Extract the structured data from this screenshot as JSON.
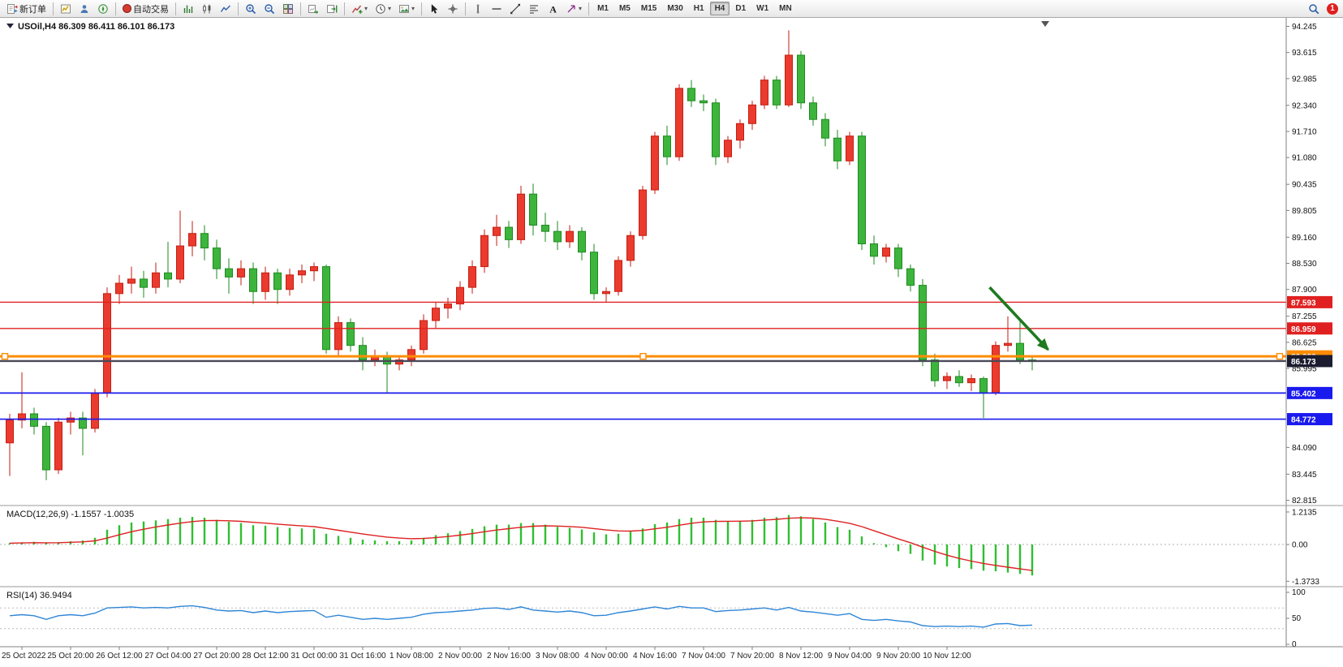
{
  "toolbar": {
    "groups": [
      {
        "items": [
          {
            "name": "new-order-button",
            "icon": "new-order",
            "label": "新订单"
          }
        ]
      },
      {
        "items": [
          {
            "name": "market-watch-button",
            "icon": "market-watch"
          },
          {
            "name": "data-window-button",
            "icon": "data-window"
          },
          {
            "name": "navigator-button",
            "icon": "navigator"
          }
        ]
      },
      {
        "items": [
          {
            "name": "autotrade-button",
            "icon": "autotrade-dot",
            "label": "自动交易"
          }
        ]
      },
      {
        "items": [
          {
            "name": "bar-chart-button",
            "icon": "bar-chart"
          },
          {
            "name": "candlestick-chart-button",
            "icon": "candlestick"
          },
          {
            "name": "line-chart-button",
            "icon": "line-chart"
          }
        ]
      },
      {
        "items": [
          {
            "name": "zoom-in-button",
            "icon": "zoom-in"
          },
          {
            "name": "zoom-out-button",
            "icon": "zoom-out"
          },
          {
            "name": "tile-windows-button",
            "icon": "tile-windows"
          }
        ]
      },
      {
        "items": [
          {
            "name": "auto-scroll-button",
            "icon": "auto-scroll"
          },
          {
            "name": "chart-shift-button",
            "icon": "chart-shift"
          }
        ]
      },
      {
        "items": [
          {
            "name": "indicators-dropdown",
            "icon": "indicators-add",
            "dropdown": true
          },
          {
            "name": "periods-dropdown",
            "icon": "clock",
            "dropdown": true
          },
          {
            "name": "templates-dropdown",
            "icon": "template",
            "dropdown": true
          }
        ]
      },
      {
        "items": [
          {
            "name": "cursor-button",
            "icon": "cursor"
          },
          {
            "name": "crosshair-button",
            "icon": "crosshair"
          }
        ]
      },
      {
        "items": [
          {
            "name": "vertical-line-button",
            "icon": "vline"
          },
          {
            "name": "horizontal-line-button",
            "icon": "hline"
          },
          {
            "name": "trendline-button",
            "icon": "trendline"
          },
          {
            "name": "fibonacci-button",
            "icon": "fibonacci"
          },
          {
            "name": "text-button",
            "icon": "text"
          },
          {
            "name": "arrows-dropdown",
            "icon": "arrows",
            "dropdown": true
          }
        ]
      }
    ],
    "timeframes": [
      "M1",
      "M5",
      "M15",
      "M30",
      "H1",
      "H4",
      "D1",
      "W1",
      "MN"
    ],
    "active_timeframe": "H4",
    "right": {
      "badge": "1"
    }
  },
  "chart": {
    "symbol_line": "USOil,H4 86.309 86.411 86.101 86.173"
  },
  "indicators": {
    "macd_label": "MACD(12,26,9) -1.1557 -1.0035",
    "rsi_label": "RSI(14) 36.9494"
  },
  "chart_data": {
    "type": "candlestick",
    "symbol": "USOil",
    "period": "H4",
    "ohlc_readout": {
      "open": 86.309,
      "high": 86.411,
      "low": 86.101,
      "close": 86.173
    },
    "up_color_convention": "red-up-green-down",
    "price_axis": {
      "ticks": [
        94.245,
        93.615,
        92.985,
        92.34,
        91.71,
        91.08,
        90.435,
        89.805,
        89.16,
        88.53,
        87.9,
        87.255,
        86.625,
        85.995,
        84.09,
        83.445,
        82.815
      ]
    },
    "time_labels": [
      "25 Oct 2022",
      "25 Oct 20:00",
      "26 Oct 12:00",
      "27 Oct 04:00",
      "27 Oct 20:00",
      "28 Oct 12:00",
      "31 Oct 00:00",
      "31 Oct 16:00",
      "1 Nov 08:00",
      "2 Nov 00:00",
      "2 Nov 16:00",
      "3 Nov 08:00",
      "4 Nov 00:00",
      "4 Nov 16:00",
      "7 Nov 04:00",
      "7 Nov 20:00",
      "8 Nov 12:00",
      "9 Nov 04:00",
      "9 Nov 20:00",
      "10 Nov 12:00"
    ],
    "candles": [
      [
        84.2,
        84.9,
        83.4,
        84.75
      ],
      [
        84.75,
        85.9,
        84.55,
        84.9
      ],
      [
        84.9,
        85.05,
        84.4,
        84.6
      ],
      [
        84.6,
        84.7,
        83.3,
        83.55
      ],
      [
        83.55,
        84.8,
        83.45,
        84.7
      ],
      [
        84.7,
        84.95,
        84.4,
        84.8
      ],
      [
        84.8,
        84.95,
        83.9,
        84.55
      ],
      [
        84.55,
        85.5,
        84.45,
        85.4
      ],
      [
        85.4,
        87.95,
        85.3,
        87.8
      ],
      [
        87.8,
        88.25,
        87.55,
        88.05
      ],
      [
        88.05,
        88.45,
        87.8,
        88.15
      ],
      [
        88.15,
        88.35,
        87.7,
        87.95
      ],
      [
        87.95,
        88.55,
        87.8,
        88.3
      ],
      [
        88.3,
        89.05,
        87.95,
        88.15
      ],
      [
        88.15,
        89.8,
        88.05,
        88.95
      ],
      [
        88.95,
        89.55,
        88.7,
        89.25
      ],
      [
        89.25,
        89.45,
        88.6,
        88.9
      ],
      [
        88.9,
        89.1,
        88.15,
        88.4
      ],
      [
        88.4,
        88.65,
        87.8,
        88.2
      ],
      [
        88.2,
        88.6,
        88.0,
        88.4
      ],
      [
        88.4,
        88.55,
        87.55,
        87.85
      ],
      [
        87.85,
        88.45,
        87.65,
        88.3
      ],
      [
        88.3,
        88.4,
        87.55,
        87.9
      ],
      [
        87.9,
        88.4,
        87.75,
        88.25
      ],
      [
        88.25,
        88.5,
        88.05,
        88.35
      ],
      [
        88.35,
        88.55,
        88.1,
        88.45
      ],
      [
        88.45,
        88.5,
        86.35,
        86.45
      ],
      [
        86.45,
        87.25,
        86.3,
        87.1
      ],
      [
        87.1,
        87.2,
        86.4,
        86.55
      ],
      [
        86.55,
        86.75,
        85.95,
        86.2
      ],
      [
        86.2,
        86.45,
        86.05,
        86.3
      ],
      [
        86.3,
        86.4,
        85.4,
        86.1
      ],
      [
        86.1,
        86.3,
        85.95,
        86.2
      ],
      [
        86.2,
        86.55,
        86.05,
        86.45
      ],
      [
        86.45,
        87.3,
        86.35,
        87.15
      ],
      [
        87.15,
        87.6,
        86.95,
        87.45
      ],
      [
        87.45,
        87.7,
        87.2,
        87.55
      ],
      [
        87.55,
        88.1,
        87.4,
        87.95
      ],
      [
        87.95,
        88.6,
        87.8,
        88.45
      ],
      [
        88.45,
        89.35,
        88.3,
        89.2
      ],
      [
        89.2,
        89.7,
        88.95,
        89.4
      ],
      [
        89.4,
        89.55,
        88.9,
        89.1
      ],
      [
        89.1,
        90.4,
        89.0,
        90.2
      ],
      [
        90.2,
        90.45,
        89.2,
        89.45
      ],
      [
        89.45,
        89.75,
        89.05,
        89.3
      ],
      [
        89.3,
        89.55,
        88.85,
        89.05
      ],
      [
        89.05,
        89.45,
        88.9,
        89.3
      ],
      [
        89.3,
        89.4,
        88.6,
        88.8
      ],
      [
        88.8,
        89.0,
        87.65,
        87.8
      ],
      [
        87.8,
        87.95,
        87.6,
        87.85
      ],
      [
        87.85,
        88.7,
        87.75,
        88.6
      ],
      [
        88.6,
        89.3,
        88.45,
        89.2
      ],
      [
        89.2,
        90.4,
        89.1,
        90.3
      ],
      [
        90.3,
        91.7,
        90.2,
        91.6
      ],
      [
        91.6,
        91.85,
        90.9,
        91.1
      ],
      [
        91.1,
        92.85,
        91.0,
        92.75
      ],
      [
        92.75,
        92.95,
        92.3,
        92.45
      ],
      [
        92.45,
        92.6,
        92.2,
        92.4
      ],
      [
        92.4,
        92.5,
        90.9,
        91.1
      ],
      [
        91.1,
        91.6,
        90.95,
        91.5
      ],
      [
        91.5,
        92.0,
        91.3,
        91.9
      ],
      [
        91.9,
        92.45,
        91.75,
        92.35
      ],
      [
        92.35,
        93.05,
        92.25,
        92.95
      ],
      [
        92.95,
        93.05,
        92.25,
        92.35
      ],
      [
        92.35,
        94.15,
        92.3,
        93.55
      ],
      [
        93.55,
        93.65,
        92.25,
        92.4
      ],
      [
        92.4,
        92.55,
        91.85,
        92.0
      ],
      [
        92.0,
        92.15,
        91.35,
        91.55
      ],
      [
        91.55,
        91.75,
        90.8,
        91.0
      ],
      [
        91.0,
        91.7,
        90.9,
        91.6
      ],
      [
        91.6,
        91.7,
        88.85,
        89.0
      ],
      [
        89.0,
        89.2,
        88.5,
        88.7
      ],
      [
        88.7,
        89.0,
        88.55,
        88.9
      ],
      [
        88.9,
        89.0,
        88.2,
        88.4
      ],
      [
        88.4,
        88.5,
        87.85,
        88.0
      ],
      [
        88.0,
        88.15,
        86.05,
        86.2
      ],
      [
        86.2,
        86.35,
        85.55,
        85.7
      ],
      [
        85.7,
        85.9,
        85.5,
        85.8
      ],
      [
        85.8,
        85.95,
        85.55,
        85.65
      ],
      [
        85.65,
        85.85,
        85.45,
        85.75
      ],
      [
        85.75,
        85.8,
        84.8,
        85.4
      ],
      [
        85.4,
        86.65,
        85.35,
        86.55
      ],
      [
        86.55,
        87.25,
        86.4,
        86.6
      ],
      [
        86.6,
        87.2,
        86.1,
        86.2
      ],
      [
        86.2,
        86.3,
        85.95,
        86.173
      ]
    ],
    "hlines": [
      {
        "price": 87.593,
        "label": "87.593",
        "color": "#e02020",
        "width": 1.4
      },
      {
        "price": 86.959,
        "label": "86.959",
        "color": "#e02020",
        "width": 1.4
      },
      {
        "price": 86.286,
        "label": "86.286",
        "color": "#ff8c00",
        "width": 3,
        "selected": true
      },
      {
        "price": 85.402,
        "label": "85.402",
        "color": "#1a1aee",
        "width": 1.7
      },
      {
        "price": 84.772,
        "label": "84.772",
        "color": "#1a1aee",
        "width": 1.7
      }
    ],
    "current_price": {
      "value": 86.173,
      "label": "86.173",
      "box_color": "#1c1c30",
      "line_color": "#4a4a58"
    },
    "trend_arrow": {
      "from_index": 80.5,
      "from_price": 87.95,
      "to_index": 85.3,
      "to_price": 86.45,
      "color": "#1f7a1f"
    },
    "macd": {
      "params": "12,26,9",
      "value": -1.1557,
      "signal_value": -1.0035,
      "axis_ticks": [
        "1.2135",
        "0.00",
        "-1.3733"
      ],
      "histogram_color": "#2fbf2f",
      "signal_color": "#dd2222",
      "histogram": [
        0.05,
        0.08,
        0.1,
        0.05,
        0.08,
        0.12,
        0.15,
        0.25,
        0.55,
        0.72,
        0.82,
        0.86,
        0.9,
        0.95,
        1.0,
        1.03,
        1.0,
        0.92,
        0.85,
        0.8,
        0.72,
        0.7,
        0.65,
        0.62,
        0.6,
        0.58,
        0.4,
        0.32,
        0.25,
        0.18,
        0.15,
        0.12,
        0.12,
        0.15,
        0.25,
        0.35,
        0.42,
        0.5,
        0.58,
        0.68,
        0.74,
        0.74,
        0.8,
        0.8,
        0.74,
        0.66,
        0.62,
        0.56,
        0.45,
        0.38,
        0.4,
        0.48,
        0.6,
        0.76,
        0.82,
        0.95,
        1.0,
        1.0,
        0.92,
        0.88,
        0.88,
        0.92,
        1.0,
        1.02,
        1.1,
        1.05,
        0.95,
        0.82,
        0.65,
        0.55,
        0.3,
        0.05,
        -0.1,
        -0.25,
        -0.35,
        -0.6,
        -0.75,
        -0.82,
        -0.88,
        -0.92,
        -0.98,
        -1.0,
        -1.05,
        -1.1,
        -1.1557
      ]
    },
    "rsi": {
      "period": 14,
      "value": 36.9494,
      "axis_ticks": [
        100,
        50,
        0
      ],
      "levels": [
        70,
        30
      ],
      "line_color": "#2f86d6",
      "values": [
        55,
        57,
        55,
        48,
        55,
        57,
        55,
        60,
        70,
        71,
        72,
        70,
        71,
        70,
        73,
        74,
        71,
        66,
        64,
        65,
        61,
        64,
        61,
        63,
        64,
        65,
        52,
        56,
        52,
        48,
        50,
        48,
        50,
        52,
        58,
        61,
        62,
        64,
        66,
        69,
        70,
        67,
        72,
        66,
        64,
        62,
        64,
        61,
        55,
        56,
        61,
        64,
        68,
        72,
        68,
        73,
        70,
        70,
        63,
        65,
        66,
        68,
        70,
        66,
        71,
        64,
        62,
        59,
        56,
        59,
        48,
        46,
        48,
        45,
        43,
        36,
        34,
        35,
        34,
        35,
        33,
        39,
        40,
        36,
        36.9494
      ]
    }
  }
}
